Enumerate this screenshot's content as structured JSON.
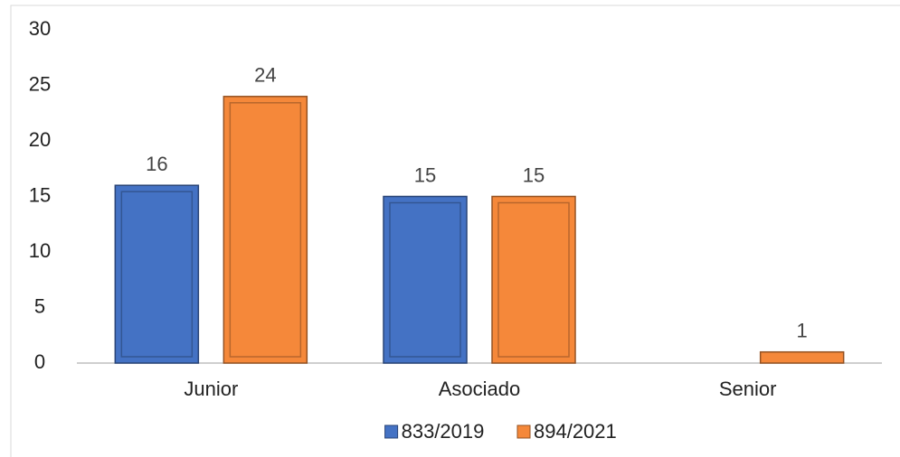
{
  "chart_data": {
    "type": "bar",
    "categories": [
      "Junior",
      "Asociado",
      "Senior"
    ],
    "series": [
      {
        "name": "833/2019",
        "color": "#4472c4",
        "values": [
          16,
          15,
          null
        ]
      },
      {
        "name": "894/2021",
        "color": "#f5883a",
        "values": [
          24,
          15,
          1
        ]
      }
    ],
    "ylim": [
      0,
      30
    ],
    "yticks": [
      0,
      5,
      10,
      15,
      20,
      25,
      30
    ],
    "grid": false,
    "legend": "bottom"
  }
}
